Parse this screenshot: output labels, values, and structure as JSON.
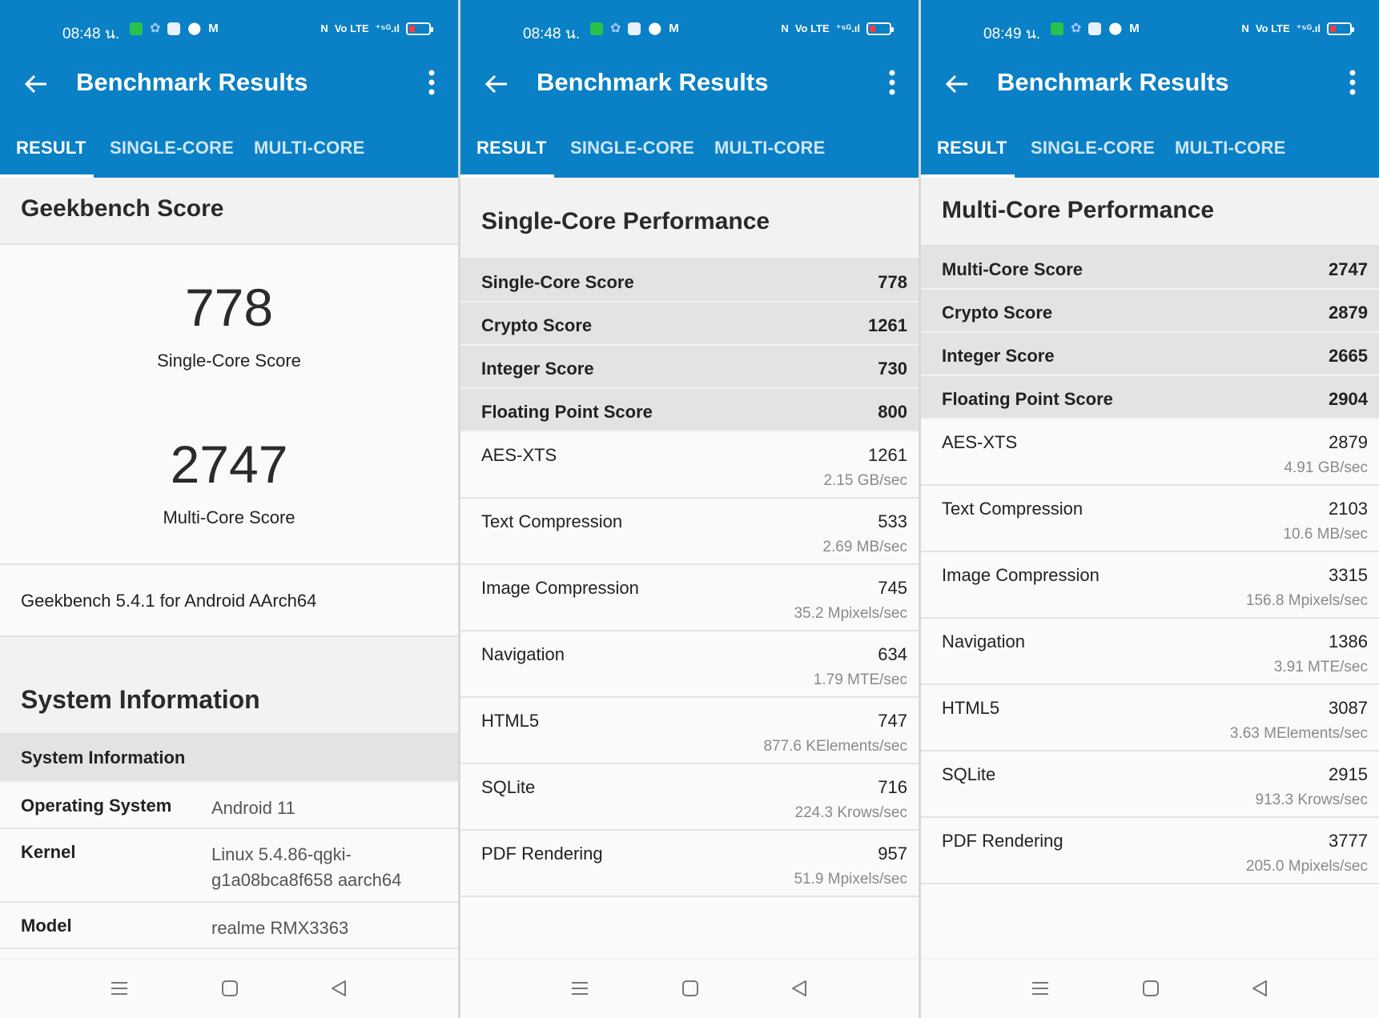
{
  "colors": {
    "appbar": "#0a80c6",
    "tab_inactive": "#cfe6f7",
    "battery_low": "#ff3b3b",
    "status_green": "#27c24c"
  },
  "app": {
    "title": "Benchmark Results",
    "tabs": [
      "RESULT",
      "SINGLE-CORE",
      "MULTI-CORE"
    ],
    "icons": {
      "back": "arrow-left-icon",
      "menu": "more-vertical-icon"
    }
  },
  "status": {
    "icons": [
      "app-notification-icon",
      "settings-icon",
      "chat-icon",
      "location-icon",
      "gmail-icon",
      "nfc-icon",
      "volte-icon",
      "signal-5g-icon",
      "battery-low-icon"
    ],
    "signal_text": "⁺⁵ᴳ.ıl",
    "volte_text": "Vo LTE"
  },
  "screens": [
    {
      "time": "08:48 น.",
      "active_tab": 0,
      "score_header": "Geekbench Score",
      "single_score": "778",
      "single_label": "Single-Core Score",
      "multi_score": "2747",
      "multi_label": "Multi-Core Score",
      "version": "Geekbench 5.4.1 for Android AArch64",
      "sys_header": "System Information",
      "sys_subheader": "System Information",
      "sys_rows": [
        {
          "key": "Operating System",
          "value": "Android 11"
        },
        {
          "key": "Kernel",
          "value": "Linux 5.4.86-qgki-g1a08bca8f658 aarch64"
        },
        {
          "key": "Model",
          "value": "realme RMX3363"
        }
      ]
    },
    {
      "time": "08:48 น.",
      "active_tab": 0,
      "header": "Single-Core Performance",
      "summary": [
        {
          "label": "Single-Core Score",
          "value": "778"
        },
        {
          "label": "Crypto Score",
          "value": "1261"
        },
        {
          "label": "Integer Score",
          "value": "730"
        },
        {
          "label": "Floating Point Score",
          "value": "800"
        }
      ],
      "tests": [
        {
          "label": "AES-XTS",
          "value": "1261",
          "rate": "2.15 GB/sec"
        },
        {
          "label": "Text Compression",
          "value": "533",
          "rate": "2.69 MB/sec"
        },
        {
          "label": "Image Compression",
          "value": "745",
          "rate": "35.2 Mpixels/sec"
        },
        {
          "label": "Navigation",
          "value": "634",
          "rate": "1.79 MTE/sec"
        },
        {
          "label": "HTML5",
          "value": "747",
          "rate": "877.6 KElements/sec"
        },
        {
          "label": "SQLite",
          "value": "716",
          "rate": "224.3 Krows/sec"
        },
        {
          "label": "PDF Rendering",
          "value": "957",
          "rate": "51.9 Mpixels/sec"
        }
      ]
    },
    {
      "time": "08:49 น.",
      "active_tab": 0,
      "header": "Multi-Core Performance",
      "summary": [
        {
          "label": "Multi-Core Score",
          "value": "2747"
        },
        {
          "label": "Crypto Score",
          "value": "2879"
        },
        {
          "label": "Integer Score",
          "value": "2665"
        },
        {
          "label": "Floating Point Score",
          "value": "2904"
        }
      ],
      "tests": [
        {
          "label": "AES-XTS",
          "value": "2879",
          "rate": "4.91 GB/sec"
        },
        {
          "label": "Text Compression",
          "value": "2103",
          "rate": "10.6 MB/sec"
        },
        {
          "label": "Image Compression",
          "value": "3315",
          "rate": "156.8 Mpixels/sec"
        },
        {
          "label": "Navigation",
          "value": "1386",
          "rate": "3.91 MTE/sec"
        },
        {
          "label": "HTML5",
          "value": "3087",
          "rate": "3.63 MElements/sec"
        },
        {
          "label": "SQLite",
          "value": "2915",
          "rate": "913.3 Krows/sec"
        },
        {
          "label": "PDF Rendering",
          "value": "3777",
          "rate": "205.0 Mpixels/sec"
        }
      ]
    }
  ],
  "navbar": {
    "icons": [
      "menu-icon",
      "home-icon",
      "back-triangle-icon"
    ]
  }
}
